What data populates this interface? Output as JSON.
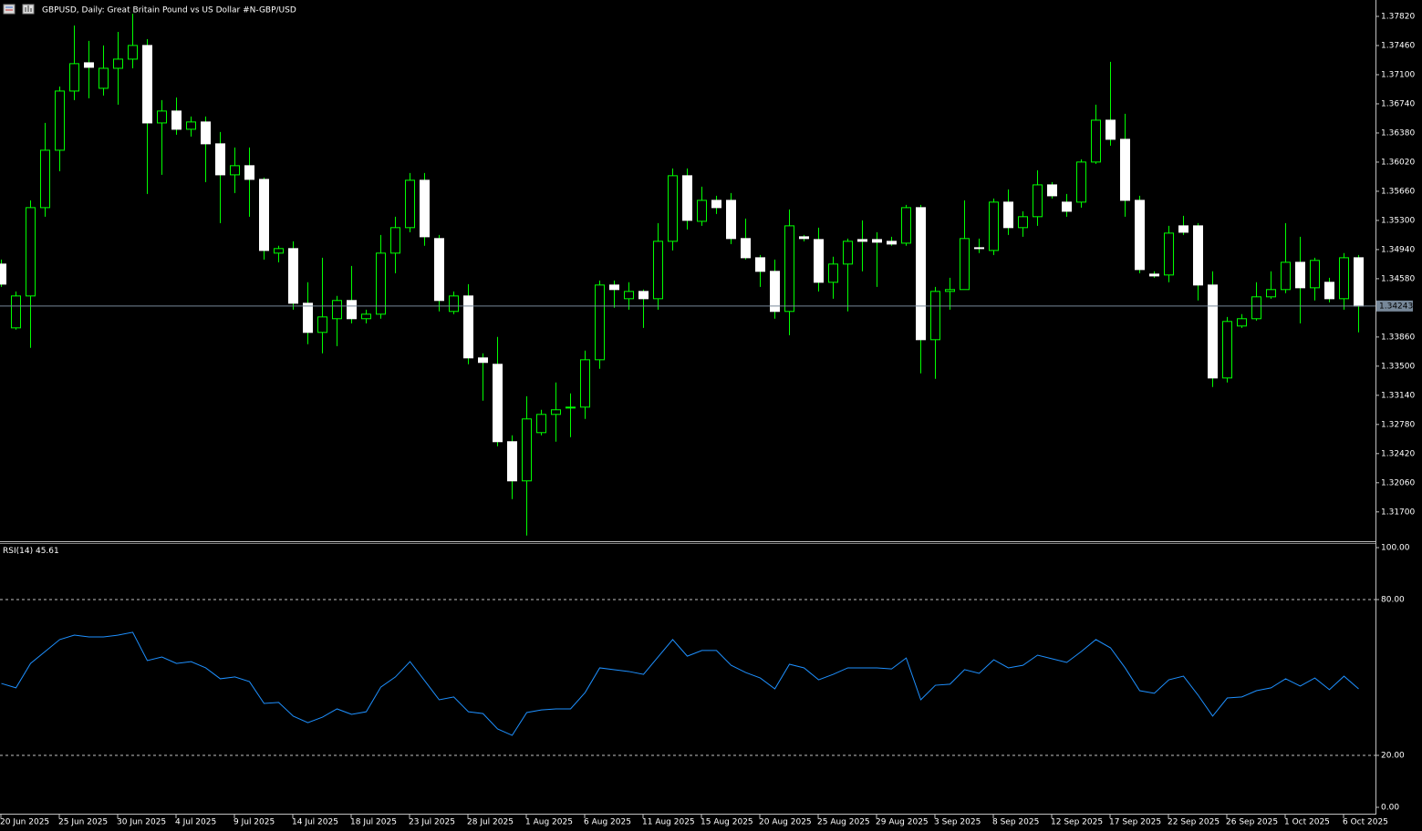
{
  "chart_data": [
    {
      "type": "candlestick",
      "title": "GBPUSD, Daily:  Great Britain Pound vs US Dollar #N-GBP/USD",
      "categories": [
        "20 Jun 2025",
        null,
        null,
        null,
        "25 Jun 2025",
        null,
        null,
        null,
        "30 Jun 2025",
        null,
        null,
        null,
        "4 Jul 2025",
        null,
        null,
        null,
        "9 Jul 2025",
        null,
        null,
        null,
        "14 Jul 2025",
        null,
        null,
        null,
        "18 Jul 2025",
        null,
        null,
        null,
        "23 Jul 2025",
        null,
        null,
        null,
        "28 Jul 2025",
        null,
        null,
        null,
        "1 Aug 2025",
        null,
        null,
        null,
        "6 Aug 2025",
        null,
        null,
        null,
        "11 Aug 2025",
        null,
        null,
        null,
        "15 Aug 2025",
        null,
        null,
        null,
        "20 Aug 2025",
        null,
        null,
        null,
        "25 Aug 2025",
        null,
        null,
        null,
        "29 Aug 2025",
        null,
        null,
        null,
        "3 Sep 2025",
        null,
        null,
        null,
        "8 Sep 2025",
        null,
        null,
        null,
        "12 Sep 2025",
        null,
        null,
        null,
        "17 Sep 2025",
        null,
        null,
        null,
        "22 Sep 2025",
        null,
        null,
        null,
        "26 Sep 2025",
        null,
        null,
        null,
        "1 Oct 2025",
        null,
        null,
        null,
        "6 Oct 2025",
        null
      ],
      "open": [
        1.34761,
        1.33973,
        1.34367,
        1.35458,
        1.36167,
        1.36898,
        1.37247,
        1.36932,
        1.37179,
        1.37292,
        1.37461,
        1.36504,
        1.36651,
        1.36426,
        1.36516,
        1.36246,
        1.35863,
        1.35976,
        1.35807,
        1.34896,
        1.34952,
        1.34277,
        1.33917,
        1.34086,
        1.34311,
        1.34086,
        1.34142,
        1.34896,
        1.35211,
        1.35796,
        1.35076,
        1.34176,
        1.34367,
        1.33602,
        1.33523,
        1.32567,
        1.32083,
        1.32679,
        1.32904,
        1.32983,
        1.32994,
        1.33579,
        1.34502,
        1.34333,
        1.34423,
        1.34333,
        1.35042,
        1.35852,
        1.35289,
        1.35548,
        1.35548,
        1.35076,
        1.34839,
        1.34671,
        1.34176,
        1.35098,
        1.35064,
        1.34536,
        1.34761,
        1.35064,
        1.35064,
        1.35042,
        1.35019,
        1.35458,
        1.33827,
        1.34423,
        1.34446,
        1.34963,
        1.34929,
        1.35526,
        1.35211,
        1.35346,
        1.35739,
        1.35526,
        1.35526,
        1.36021,
        1.36538,
        1.36302,
        1.35548,
        1.34637,
        1.34626,
        1.35233,
        1.35233,
        1.34502,
        1.33354,
        1.33996,
        1.34086,
        1.34356,
        1.34446,
        1.34783,
        1.34468,
        1.34536,
        1.34333,
        1.34839
      ],
      "high": [
        1.34817,
        1.34423,
        1.35548,
        1.36504,
        1.36954,
        1.37708,
        1.37517,
        1.37461,
        1.37629,
        1.37854,
        1.37539,
        1.36786,
        1.36819,
        1.36583,
        1.36583,
        1.36392,
        1.36201,
        1.36201,
        1.35829,
        1.34986,
        1.35042,
        1.34536,
        1.34839,
        1.34367,
        1.34738,
        1.34198,
        1.35121,
        1.35346,
        1.35886,
        1.35886,
        1.35121,
        1.34423,
        1.34513,
        1.33658,
        1.33861,
        1.32646,
        1.33129,
        1.32961,
        1.33298,
        1.33163,
        1.33692,
        1.34558,
        1.34558,
        1.34536,
        1.34446,
        1.35267,
        1.35942,
        1.35942,
        1.35717,
        1.35604,
        1.35638,
        1.35323,
        1.34873,
        1.34817,
        1.35436,
        1.35121,
        1.35211,
        1.34851,
        1.35076,
        1.35301,
        1.35154,
        1.35098,
        1.35492,
        1.35492,
        1.34479,
        1.34592,
        1.35548,
        1.35076,
        1.35571,
        1.35683,
        1.35413,
        1.35919,
        1.35773,
        1.35627,
        1.36054,
        1.36729,
        1.37258,
        1.36617,
        1.35604,
        1.34671,
        1.35233,
        1.35357,
        1.35267,
        1.34671,
        1.34108,
        1.34142,
        1.34536,
        1.34671,
        1.35267,
        1.35098,
        1.34839,
        1.34592,
        1.34896,
        1.34873
      ],
      "low": [
        1.34479,
        1.33951,
        1.33726,
        1.35346,
        1.35908,
        1.36786,
        1.36808,
        1.36842,
        1.36729,
        1.37179,
        1.35627,
        1.35863,
        1.36358,
        1.36336,
        1.35773,
        1.35267,
        1.35638,
        1.35346,
        1.34817,
        1.34783,
        1.34198,
        1.33771,
        1.33658,
        1.33748,
        1.34029,
        1.34029,
        1.34086,
        1.34648,
        1.35154,
        1.34986,
        1.34176,
        1.34142,
        1.33523,
        1.33073,
        1.32511,
        1.31858,
        1.31408,
        1.32646,
        1.32567,
        1.32623,
        1.32848,
        1.33467,
        1.34221,
        1.34198,
        1.33973,
        1.34198,
        1.34929,
        1.35188,
        1.35233,
        1.35379,
        1.35008,
        1.34817,
        1.34479,
        1.34086,
        1.33883,
        1.35042,
        1.34423,
        1.34333,
        1.34176,
        1.34671,
        1.34479,
        1.34986,
        1.34986,
        1.33411,
        1.33343,
        1.34198,
        1.34446,
        1.34896,
        1.34873,
        1.35121,
        1.35098,
        1.35233,
        1.35571,
        1.35346,
        1.35458,
        1.35998,
        1.36223,
        1.35346,
        1.34648,
        1.34592,
        1.34536,
        1.35121,
        1.34311,
        1.33242,
        1.33298,
        1.33973,
        1.34063,
        1.34333,
        1.34401,
        1.34029,
        1.34311,
        1.34288,
        1.34198,
        1.33917
      ],
      "close": [
        1.34513,
        1.34367,
        1.35458,
        1.36167,
        1.36898,
        1.37236,
        1.37191,
        1.37179,
        1.37292,
        1.37461,
        1.36504,
        1.36651,
        1.36426,
        1.36516,
        1.36246,
        1.35863,
        1.35976,
        1.35807,
        1.34929,
        1.34952,
        1.34277,
        1.33917,
        1.34108,
        1.34311,
        1.34086,
        1.34142,
        1.34896,
        1.35211,
        1.35796,
        1.35098,
        1.34311,
        1.34367,
        1.33602,
        1.33546,
        1.32567,
        1.32083,
        1.32848,
        1.32904,
        1.32961,
        1.32994,
        1.33579,
        1.34502,
        1.34446,
        1.34423,
        1.34333,
        1.35042,
        1.35852,
        1.35301,
        1.35548,
        1.35458,
        1.35076,
        1.34839,
        1.34671,
        1.34176,
        1.35233,
        1.35076,
        1.34536,
        1.34761,
        1.35042,
        1.35042,
        1.35031,
        1.35008,
        1.35458,
        1.33827,
        1.34423,
        1.34446,
        1.35076,
        1.34952,
        1.35526,
        1.35211,
        1.35346,
        1.35739,
        1.35604,
        1.35413,
        1.36021,
        1.36538,
        1.36302,
        1.35548,
        1.34693,
        1.34614,
        1.35143,
        1.35154,
        1.34502,
        1.33354,
        1.34052,
        1.34086,
        1.34356,
        1.34446,
        1.34783,
        1.34468,
        1.34806,
        1.34333,
        1.34839,
        1.34243
      ],
      "up_color": "#00ff00",
      "down_color": "#ffffff",
      "wick_color": "#00ff00",
      "ylim": [
        1.3136,
        1.38
      ],
      "yticks": [
        {
          "value": 1.3782,
          "label": "1.37820"
        },
        {
          "value": 1.3746,
          "label": "1.37460"
        },
        {
          "value": 1.371,
          "label": "1.37100"
        },
        {
          "value": 1.3674,
          "label": "1.36740"
        },
        {
          "value": 1.3638,
          "label": "1.36380"
        },
        {
          "value": 1.3602,
          "label": "1.36020"
        },
        {
          "value": 1.3566,
          "label": "1.35660"
        },
        {
          "value": 1.353,
          "label": "1.35300"
        },
        {
          "value": 1.3494,
          "label": "1.34940"
        },
        {
          "value": 1.3458,
          "label": "1.34580"
        },
        {
          "value": 1.3386,
          "label": "1.33860"
        },
        {
          "value": 1.335,
          "label": "1.33500"
        },
        {
          "value": 1.3314,
          "label": "1.33140"
        },
        {
          "value": 1.3278,
          "label": "1.32780"
        },
        {
          "value": 1.3242,
          "label": "1.32420"
        },
        {
          "value": 1.3206,
          "label": "1.32060"
        },
        {
          "value": 1.317,
          "label": "1.31700"
        }
      ],
      "last_price": {
        "value": 1.34243,
        "label": "1.34243"
      }
    },
    {
      "type": "line",
      "series": [
        {
          "name": "RSI(14)",
          "color": "#1e90ff",
          "values": [
            47.7,
            46.0,
            55.4,
            60.0,
            64.6,
            66.3,
            65.6,
            65.6,
            66.3,
            67.4,
            56.5,
            57.9,
            55.4,
            56.1,
            53.7,
            49.5,
            50.2,
            48.4,
            40.0,
            40.4,
            35.1,
            32.6,
            34.7,
            37.9,
            35.8,
            36.8,
            46.3,
            50.2,
            56.1,
            48.8,
            41.4,
            42.5,
            36.8,
            36.1,
            30.2,
            27.7,
            36.5,
            37.5,
            37.9,
            37.9,
            44.2,
            53.7,
            53.0,
            52.3,
            51.2,
            57.9,
            64.6,
            58.2,
            60.4,
            60.4,
            54.7,
            51.9,
            49.8,
            45.6,
            55.1,
            53.7,
            49.1,
            51.2,
            53.7,
            53.7,
            53.7,
            53.3,
            57.5,
            41.4,
            47.0,
            47.4,
            53.0,
            51.6,
            56.8,
            53.7,
            54.7,
            58.6,
            57.2,
            55.8,
            60.0,
            64.6,
            61.4,
            53.7,
            44.9,
            43.9,
            49.1,
            50.5,
            43.2,
            35.1,
            42.1,
            42.5,
            44.9,
            46.0,
            49.5,
            46.7,
            49.8,
            45.3,
            50.5,
            45.61
          ]
        }
      ],
      "ylim": [
        0,
        100
      ],
      "yticks": [
        {
          "value": 100,
          "label": "100.00"
        },
        {
          "value": 80,
          "label": "80.00"
        },
        {
          "value": 20,
          "label": "20.00"
        },
        {
          "value": 0,
          "label": "0.00"
        }
      ],
      "levels": [
        80,
        20
      ]
    }
  ]
}
